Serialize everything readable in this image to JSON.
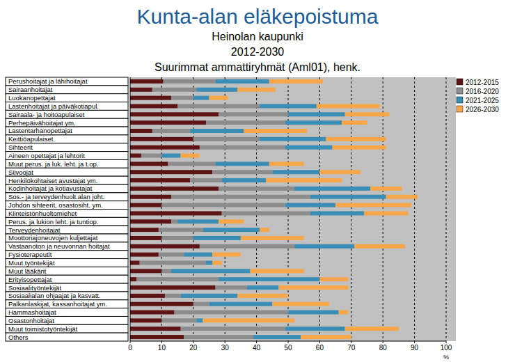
{
  "chart_data": {
    "type": "bar",
    "orientation": "horizontal",
    "stacked": true,
    "grid": true,
    "legend": "top-right",
    "title": "Kunta-alan eläkepoistuma",
    "subtitle": [
      "Heinolan kaupunki",
      "2012-2030",
      "Suurimmat ammattiryhmät (Aml01), henk."
    ],
    "x_label": "%",
    "xlim": [
      0,
      100
    ],
    "xticks": [
      0,
      10,
      20,
      30,
      40,
      50,
      60,
      70,
      80,
      90,
      100
    ],
    "categories": [
      "Perushoitajat ja lähihoitajat",
      "Sairaanhoitajat",
      "Luokanopettajat",
      "Lastenhoitajat ja päiväkotiapul.",
      "Sairaala- ja hoitoapulaiset",
      "Perhepäivähoitajat ym.",
      "Lastentarhanopettajat",
      "Keittiöapulaiset",
      "Sihteerit",
      "Aineen opettajat ja lehtorit",
      "Muut perus. ja luk. leht. ja t.op.",
      "Siivoojat",
      "Henkilökohtaiset avustajat ym.",
      "Kodinhoitajat ja kotiavustajat",
      "Sos.- ja terveydenhuolt.alan joht.",
      "Johdon sihteerit, osastosiht. ym.",
      "Kiinteistönhuoltomiehet",
      "Perus. ja lukion leht. ja tuntiop.",
      "Terveydenhoitajat",
      "Moottoriajoneuvojen kuljettajat",
      "Vastaanoton ja neuvonnan hoitajat",
      "Fysioterapeutit",
      "Muut työntekijät",
      "Muut lääkärit",
      "Erityisopettajat",
      "Sosiaalityöntekijät",
      "Sosiaalialan ohjaajat ja kasvatt.",
      "Palkanlaskijat, kassanhoitajat ym.",
      "Hammashoitajat",
      "Osastonhoitajat",
      "Muut toimistotyöntekijät",
      "Others"
    ],
    "series": [
      {
        "name": "2012-2015",
        "color": "#5c1414",
        "values": [
          10.5,
          7,
          13,
          15,
          28,
          24,
          7,
          20,
          22,
          3.5,
          12,
          26,
          19,
          28,
          13,
          10,
          29,
          13,
          9,
          10,
          22,
          9,
          3,
          10,
          2,
          27,
          11,
          20,
          14,
          10,
          16,
          17
        ]
      },
      {
        "name": "2016-2020",
        "color": "#8c8c8c",
        "values": [
          16.5,
          14,
          7,
          26,
          22,
          25,
          12,
          21,
          27,
          6.5,
          15,
          19,
          10,
          24,
          44,
          39,
          28,
          2,
          14,
          10,
          30,
          8,
          21,
          3,
          26,
          10,
          5,
          5,
          36,
          11,
          33,
          22
        ]
      },
      {
        "name": "2021-2025",
        "color": "#3a8db4",
        "values": [
          17,
          13,
          5,
          18,
          18,
          18,
          17,
          21,
          15,
          6,
          17,
          15,
          14,
          24,
          24,
          16,
          17,
          13,
          18,
          15,
          19,
          9,
          2,
          25,
          32,
          10,
          18,
          20,
          16,
          2,
          19,
          15
        ]
      },
      {
        "name": "2026-2030",
        "color": "#f7a64a",
        "values": [
          17,
          12,
          6,
          20,
          14,
          8,
          20,
          19,
          17,
          6,
          11,
          13,
          24,
          10,
          10,
          24,
          14,
          8,
          3,
          20,
          16,
          9,
          3,
          17,
          9,
          22,
          16,
          18,
          3,
          29,
          17,
          16
        ]
      }
    ]
  }
}
